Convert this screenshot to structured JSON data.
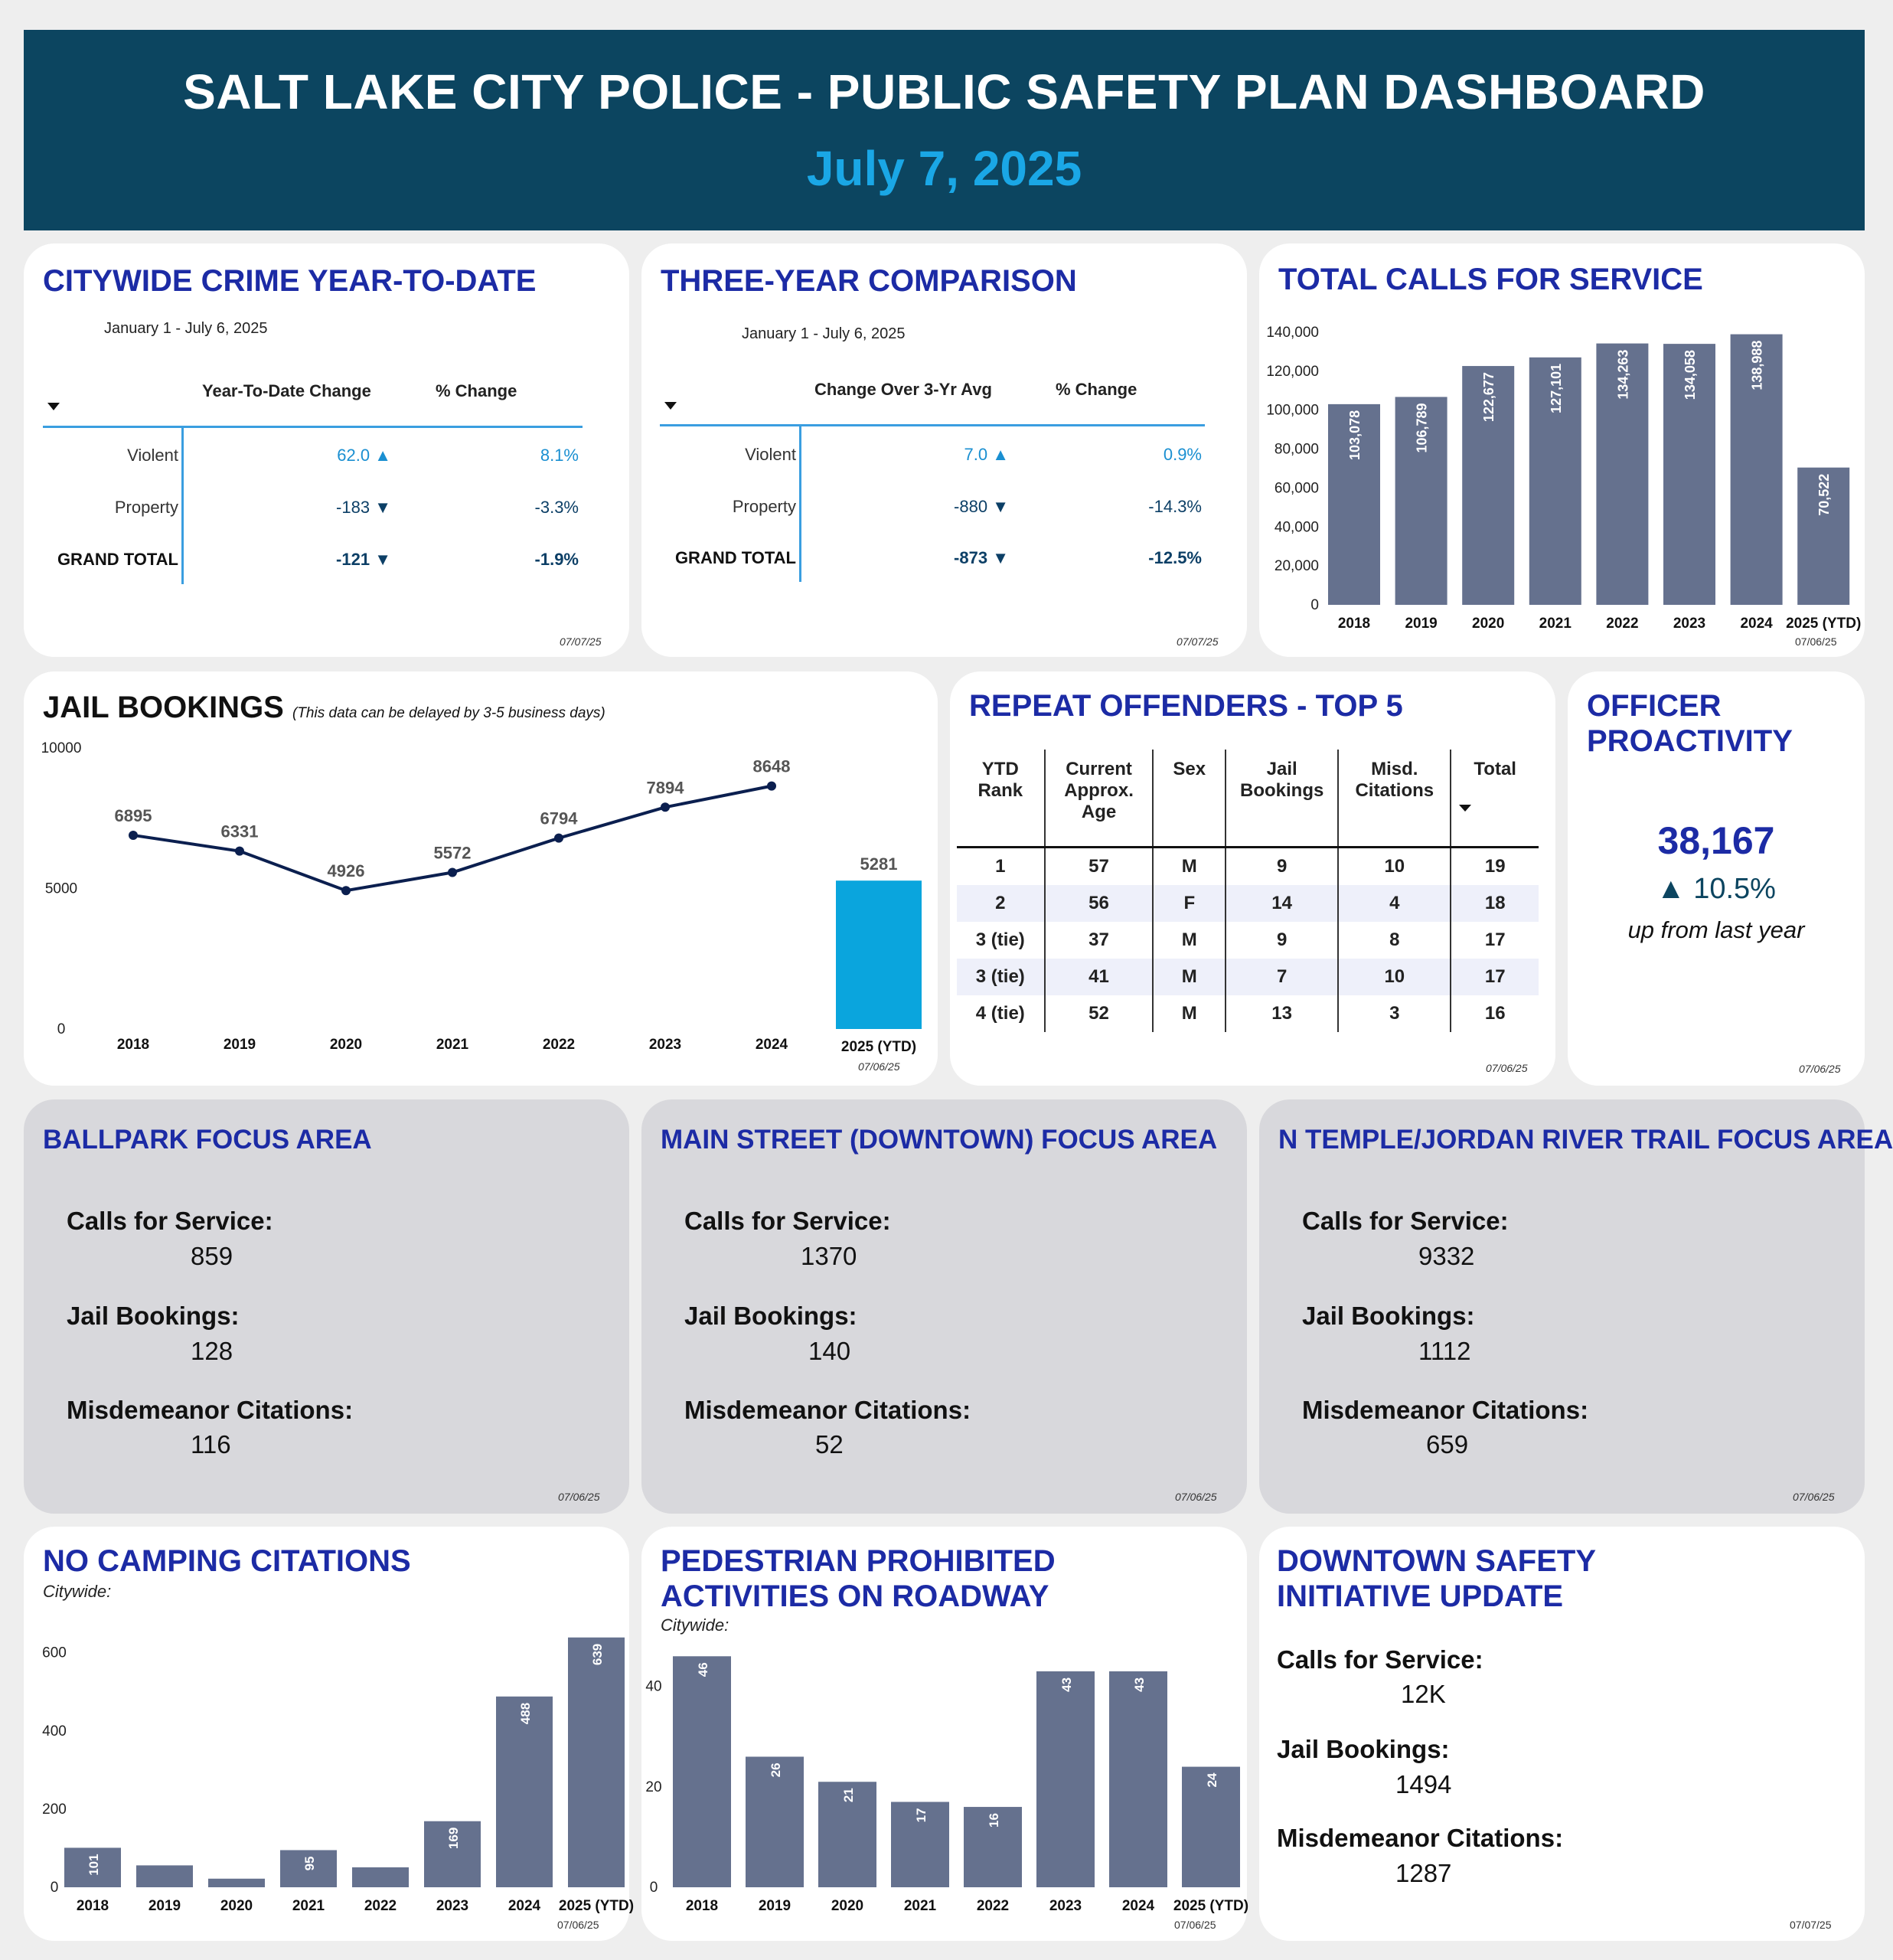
{
  "header": {
    "title": "SALT LAKE CITY POLICE - PUBLIC SAFETY PLAN DASHBOARD",
    "date": "July 7, 2025"
  },
  "crime_ytd": {
    "title": "CITYWIDE CRIME YEAR-TO-DATE",
    "range": "January 1 - July 6, 2025",
    "col1": "Year-To-Date Change",
    "col2": "% Change",
    "rows": [
      {
        "label": "Violent",
        "change": "62.0",
        "arrow": "▲",
        "pct": "8.1%"
      },
      {
        "label": "Property",
        "change": "-183",
        "arrow": "▼",
        "pct": "-3.3%"
      },
      {
        "label": "GRAND TOTAL",
        "change": "-121",
        "arrow": "▼",
        "pct": "-1.9%"
      }
    ],
    "stamp": "07/07/25"
  },
  "three_year": {
    "title": "THREE-YEAR COMPARISON",
    "range": "January 1 - July 6, 2025",
    "col1": "Change Over 3-Yr Avg",
    "col2": "% Change",
    "rows": [
      {
        "label": "Violent",
        "change": "7.0",
        "arrow": "▲",
        "pct": "0.9%"
      },
      {
        "label": "Property",
        "change": "-880",
        "arrow": "▼",
        "pct": "-14.3%"
      },
      {
        "label": "GRAND TOTAL",
        "change": "-873",
        "arrow": "▼",
        "pct": "-12.5%"
      }
    ],
    "stamp": "07/07/25"
  },
  "calls": {
    "title": "TOTAL CALLS FOR SERVICE",
    "stamp": "07/06/25"
  },
  "jail": {
    "title": "JAIL BOOKINGS",
    "note": "(This data can be delayed by 3-5 business days)",
    "stamp": "07/06/25"
  },
  "repeat": {
    "title": "REPEAT OFFENDERS - TOP 5",
    "headers": [
      "YTD Rank",
      "Current Approx. Age",
      "Sex",
      "Jail Bookings",
      "Misd. Citations",
      "Total"
    ],
    "rows": [
      [
        "1",
        "57",
        "M",
        "9",
        "10",
        "19"
      ],
      [
        "2",
        "56",
        "F",
        "14",
        "4",
        "18"
      ],
      [
        "3 (tie)",
        "37",
        "M",
        "9",
        "8",
        "17"
      ],
      [
        "3 (tie)",
        "41",
        "M",
        "7",
        "10",
        "17"
      ],
      [
        "4 (tie)",
        "52",
        "M",
        "13",
        "3",
        "16"
      ]
    ],
    "stamp": "07/06/25"
  },
  "proactivity": {
    "title": "OFFICER PROACTIVITY",
    "value": "38,167",
    "change": "▲ 10.5%",
    "note": "up from last year",
    "stamp": "07/06/25"
  },
  "focus": [
    {
      "title": "BALLPARK FOCUS AREA",
      "calls_label": "Calls for Service:",
      "calls": "859",
      "jail_label": "Jail Bookings:",
      "jail": "128",
      "misd_label": "Misdemeanor Citations:",
      "misd": "116",
      "stamp": "07/06/25"
    },
    {
      "title": "MAIN STREET (DOWNTOWN) FOCUS AREA",
      "calls_label": "Calls for Service:",
      "calls": "1370",
      "jail_label": "Jail Bookings:",
      "jail": "140",
      "misd_label": "Misdemeanor Citations:",
      "misd": "52",
      "stamp": "07/06/25"
    },
    {
      "title": "N TEMPLE/JORDAN RIVER TRAIL FOCUS AREA",
      "calls_label": "Calls for Service:",
      "calls": "9332",
      "jail_label": "Jail Bookings:",
      "jail": "1112",
      "misd_label": "Misdemeanor Citations:",
      "misd": "659",
      "stamp": "07/06/25"
    }
  ],
  "camping": {
    "title": "NO CAMPING CITATIONS",
    "sub": "Citywide:",
    "stamp": "07/06/25"
  },
  "pedestrian": {
    "title1": "PEDESTRIAN PROHIBITED",
    "title2": "ACTIVITIES ON ROADWAY",
    "sub": "Citywide:",
    "stamp": "07/06/25"
  },
  "downtown": {
    "title1": "DOWNTOWN SAFETY",
    "title2": "INITIATIVE UPDATE",
    "calls_label": "Calls for Service:",
    "calls": "12K",
    "jail_label": "Jail Bookings:",
    "jail": "1494",
    "misd_label": "Misdemeanor Citations:",
    "misd": "1287",
    "stamp": "07/07/25"
  },
  "chart_data": [
    {
      "id": "calls",
      "type": "bar",
      "categories": [
        "2018",
        "2019",
        "2020",
        "2021",
        "2022",
        "2023",
        "2024",
        "2025 (YTD)"
      ],
      "values": [
        103078,
        106789,
        122677,
        127101,
        134263,
        134058,
        138988,
        70522
      ],
      "labels": [
        "103,078",
        "106,789",
        "122,677",
        "127,101",
        "134,263",
        "134,058",
        "138,988",
        "70,522"
      ],
      "yticks": [
        "0",
        "20,000",
        "40,000",
        "60,000",
        "80,000",
        "100,000",
        "120,000",
        "140,000"
      ],
      "ylim": [
        0,
        140000
      ],
      "color": "#65718e"
    },
    {
      "id": "jail",
      "type": "line",
      "categories": [
        "2018",
        "2019",
        "2020",
        "2021",
        "2022",
        "2023",
        "2024"
      ],
      "values": [
        6895,
        6331,
        4926,
        5572,
        6794,
        7894,
        8648
      ],
      "ytd_category": "2025 (YTD)",
      "ytd_value": 5281,
      "yticks": [
        "0",
        "5000",
        "10000"
      ],
      "ylim": [
        0,
        10000
      ],
      "line_color": "#0b1f4f",
      "ytd_color": "#0aa5dd"
    },
    {
      "id": "camping",
      "type": "bar",
      "categories": [
        "2018",
        "2019",
        "2020",
        "2021",
        "2022",
        "2023",
        "2024",
        "2025 (YTD)"
      ],
      "values": [
        101,
        56,
        22,
        95,
        51,
        169,
        488,
        639
      ],
      "labels": [
        "101",
        "",
        "",
        "95",
        "",
        "169",
        "488",
        "639"
      ],
      "yticks": [
        "0",
        "200",
        "400",
        "600"
      ],
      "ylim": [
        0,
        660
      ],
      "color": "#65718e"
    },
    {
      "id": "pedestrian",
      "type": "bar",
      "categories": [
        "2018",
        "2019",
        "2020",
        "2021",
        "2022",
        "2023",
        "2024",
        "2025 (YTD)"
      ],
      "values": [
        46,
        26,
        21,
        17,
        16,
        43,
        43,
        24
      ],
      "labels": [
        "46",
        "26",
        "21",
        "17",
        "16",
        "43",
        "43",
        "24"
      ],
      "yticks": [
        "0",
        "20",
        "40"
      ],
      "ylim": [
        0,
        46.5
      ],
      "color": "#65718e"
    }
  ]
}
